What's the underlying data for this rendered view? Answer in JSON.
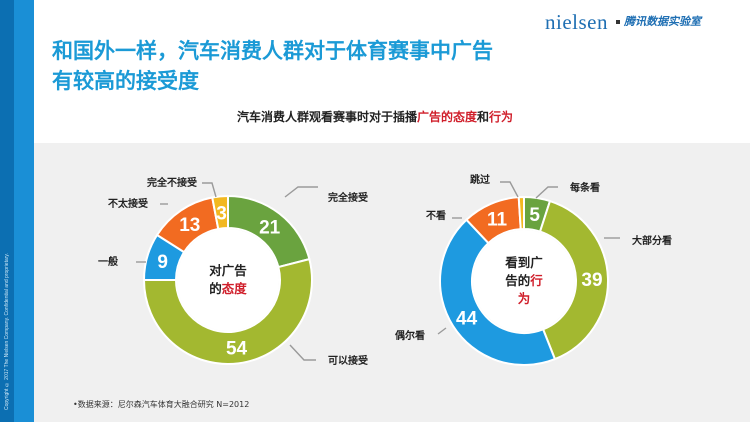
{
  "header": {
    "title_line1": "和国外一样，汽车消费人群对于体育赛事中广告",
    "title_line2": "有较高的接受度",
    "brand": "nielsen",
    "brand_sub": "腾讯数据实验室"
  },
  "subtitle": {
    "part1": "汽车消费人群观看赛事时对于插播",
    "highlight1": "广告的态度",
    "part2": "和",
    "highlight2": "行为"
  },
  "side_text": "Copyright © 2017 The Nielsen Company. Confidential and proprietary.",
  "source": "•数据来源：尼尔森汽车体育大融合研究 N=2012",
  "colors": {
    "green": "#6aa33f",
    "olive": "#a3b830",
    "blue": "#1e9ae0",
    "orange": "#f26b21",
    "yellow": "#f2b820",
    "red": "#d01f2b"
  },
  "chart_data": [
    {
      "type": "pie",
      "center_label_line1": "对广告",
      "center_label_line2a": "的",
      "center_label_line2b": "态度",
      "slices": [
        {
          "label": "完全接受",
          "value": 21,
          "color": "#6aa33f"
        },
        {
          "label": "可以接受",
          "value": 54,
          "color": "#a3b830"
        },
        {
          "label": "一般",
          "value": 9,
          "color": "#1e9ae0"
        },
        {
          "label": "不太接受",
          "value": 13,
          "color": "#f26b21"
        },
        {
          "label": "完全不接受",
          "value": 3,
          "color": "#f2b820"
        }
      ]
    },
    {
      "type": "pie",
      "center_label_line1": "看到广",
      "center_label_line2a": "告的",
      "center_label_line2b": "行",
      "center_label_line3": "为",
      "slices": [
        {
          "label": "每条看",
          "value": 5,
          "color": "#6aa33f"
        },
        {
          "label": "大部分看",
          "value": 39,
          "color": "#a3b830"
        },
        {
          "label": "偶尔看",
          "value": 44,
          "color": "#1e9ae0"
        },
        {
          "label": "不看",
          "value": 11,
          "color": "#f26b21"
        },
        {
          "label": "跳过",
          "value": 1,
          "color": "#f2b820"
        }
      ]
    }
  ]
}
